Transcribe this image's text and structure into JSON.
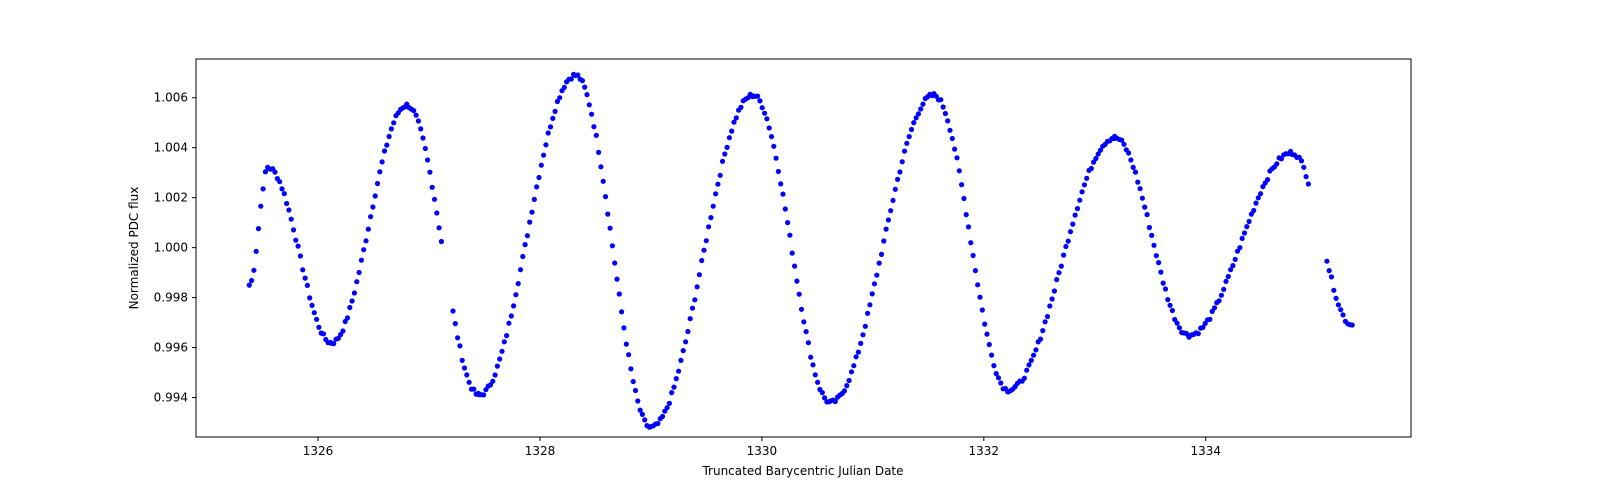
{
  "chart_data": {
    "type": "scatter",
    "title": "",
    "xlabel": "Truncated Barycentric Julian Date",
    "ylabel": "Normalized PDC flux",
    "xlim": [
      1324.9,
      1335.85
    ],
    "ylim": [
      0.99242,
      1.00755
    ],
    "xticks": [
      1326,
      1328,
      1330,
      1332,
      1334
    ],
    "yticks": [
      0.994,
      0.996,
      0.998,
      1.0,
      1.002,
      1.004,
      1.006
    ],
    "grid": false,
    "legend": null,
    "marker_color": "#0000ff",
    "extrema": [
      {
        "x": 1325.38,
        "y": 0.9985
      },
      {
        "x": 1325.55,
        "y": 1.0032
      },
      {
        "x": 1326.12,
        "y": 0.9962
      },
      {
        "x": 1326.8,
        "y": 1.0057
      },
      {
        "x": 1327.45,
        "y": 0.9941
      },
      {
        "x": 1328.32,
        "y": 1.0069
      },
      {
        "x": 1329.0,
        "y": 0.9928
      },
      {
        "x": 1329.92,
        "y": 1.0061
      },
      {
        "x": 1330.62,
        "y": 0.9938
      },
      {
        "x": 1331.55,
        "y": 1.0061
      },
      {
        "x": 1332.22,
        "y": 0.9943
      },
      {
        "x": 1333.18,
        "y": 1.0044
      },
      {
        "x": 1333.85,
        "y": 0.9965
      },
      {
        "x": 1334.78,
        "y": 1.0038
      },
      {
        "x": 1335.32,
        "y": 0.9969
      }
    ],
    "gaps": [
      [
        1327.12,
        1327.2
      ],
      [
        1334.93,
        1335.08
      ]
    ],
    "cadence_days": 0.0208
  }
}
